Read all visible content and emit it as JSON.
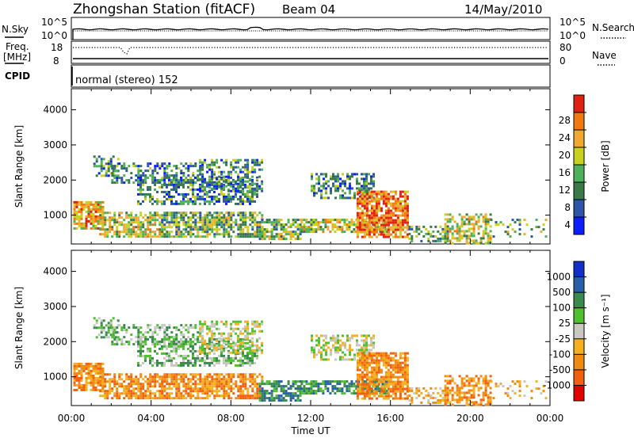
{
  "header": {
    "station": "Zhongshan Station (fitACF)",
    "beam": "Beam 04",
    "date": "14/May/2010",
    "nsky_label": "N.Sky",
    "nsky_hi": "10^5",
    "nsky_lo": "10^0",
    "nsearch_label": "N.Search",
    "nsearch_hi": "10^5",
    "nsearch_lo": "10^0",
    "freq_label": "Freq.",
    "freq_unit": "[MHz]",
    "freq_hi": "18",
    "freq_lo": "8",
    "nave_label": "Nave",
    "nave_hi": "80",
    "nave_lo": "0",
    "cpid_label": "CPID",
    "cpid_text": "normal (stereo) 152"
  },
  "colors": {
    "power": [
      "#0a1eff",
      "#2d55a8",
      "#3a7a48",
      "#4fb05a",
      "#c8d020",
      "#f0a830",
      "#f07a10",
      "#e02010"
    ],
    "velocity": [
      "#e00000",
      "#f06010",
      "#f08a10",
      "#f5b020",
      "#c8c8c0",
      "#50c030",
      "#3a8a50",
      "#2860a8",
      "#1030c8"
    ]
  },
  "chart_data": [
    {
      "type": "heatmap",
      "name": "power-panel",
      "xlabel": "",
      "ylabel": "Slant Range [km]",
      "yticks": [
        "1000",
        "2000",
        "3000",
        "4000"
      ],
      "colorbar_label": "Power [dB]",
      "colorbar_ticks": [
        "4",
        "8",
        "12",
        "16",
        "20",
        "24",
        "28"
      ],
      "ylim": [
        180,
        4600
      ],
      "xlim_hours": [
        0,
        24
      ]
    },
    {
      "type": "heatmap",
      "name": "velocity-panel",
      "xlabel": "Time UT",
      "ylabel": "Slant Range [km]",
      "yticks": [
        "1000",
        "2000",
        "3000",
        "4000"
      ],
      "xticks": [
        "00:00",
        "04:00",
        "08:00",
        "12:00",
        "16:00",
        "20:00",
        "00:00"
      ],
      "colorbar_label": "Velocity [m s⁻¹]",
      "colorbar_ticks": [
        "1000",
        "500",
        "100",
        "25",
        "-25",
        "-100",
        "-500",
        "-1000"
      ],
      "ylim": [
        180,
        4600
      ],
      "xlim_hours": [
        0,
        24
      ]
    }
  ]
}
